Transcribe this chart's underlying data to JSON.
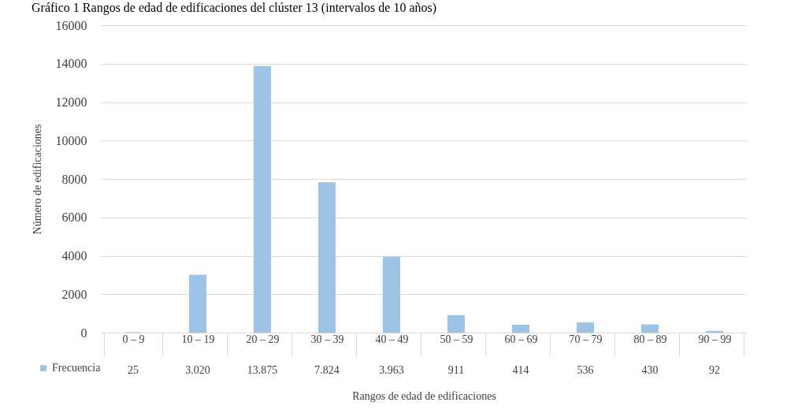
{
  "chart_data": {
    "type": "bar",
    "title": "Gráfico 1 Rangos de edad de edificaciones del clúster 13 (intervalos de 10 años)",
    "xlabel": "Rangos de edad de edificaciones",
    "ylabel": "Número de edificaciones",
    "categories": [
      "0 – 9",
      "10 – 19",
      "20 – 29",
      "30 – 39",
      "40 – 49",
      "50 – 59",
      "60 – 69",
      "70 – 79",
      "80 – 89",
      "90 – 99"
    ],
    "series": [
      {
        "name": "Frecuencia",
        "color": "#9dc3e6",
        "values": [
          25,
          3020,
          13875,
          7824,
          3963,
          911,
          414,
          536,
          430,
          92
        ],
        "value_labels": [
          "25",
          "3.020",
          "13.875",
          "7.824",
          "3.963",
          "911",
          "414",
          "536",
          "430",
          "92"
        ]
      }
    ],
    "ylim": [
      0,
      16000
    ],
    "yticks": [
      0,
      2000,
      4000,
      6000,
      8000,
      10000,
      12000,
      14000,
      16000
    ],
    "grid": "y",
    "legend": "bottom"
  }
}
